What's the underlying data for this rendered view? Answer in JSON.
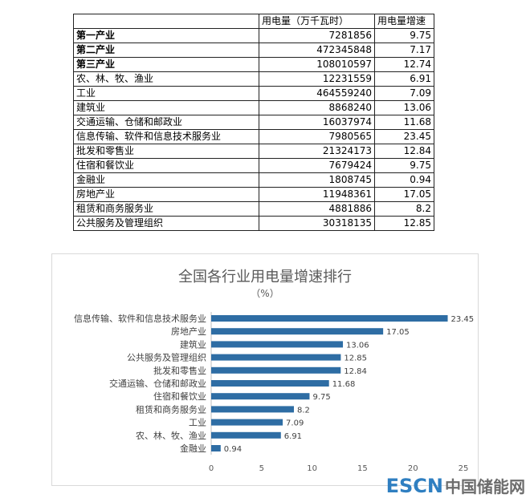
{
  "table": {
    "header": [
      "",
      "用电量（万千瓦时）",
      "用电量增速"
    ],
    "rows": [
      {
        "name": "第一产业",
        "usage": "7281856",
        "growth": "9.75",
        "bold": true
      },
      {
        "name": "第二产业",
        "usage": "472345848",
        "growth": "7.17",
        "bold": true
      },
      {
        "name": "第三产业",
        "usage": "108010597",
        "growth": "12.74",
        "bold": true
      },
      {
        "name": "农、林、牧、渔业",
        "usage": "12231559",
        "growth": "6.91",
        "bold": false
      },
      {
        "name": "工业",
        "usage": "464559240",
        "growth": "7.09",
        "bold": false
      },
      {
        "name": "建筑业",
        "usage": "8868240",
        "growth": "13.06",
        "bold": false
      },
      {
        "name": "交通运输、仓储和邮政业",
        "usage": "16037974",
        "growth": "11.68",
        "bold": false
      },
      {
        "name": "信息传输、软件和信息技术服务业",
        "usage": "7980565",
        "growth": "23.45",
        "bold": false
      },
      {
        "name": "批发和零售业",
        "usage": "21324173",
        "growth": "12.84",
        "bold": false
      },
      {
        "name": "住宿和餐饮业",
        "usage": "7679424",
        "growth": "9.75",
        "bold": false
      },
      {
        "name": "金融业",
        "usage": "1808745",
        "growth": "0.94",
        "bold": false
      },
      {
        "name": "房地产业",
        "usage": "11948361",
        "growth": "17.05",
        "bold": false
      },
      {
        "name": "租赁和商务服务业",
        "usage": "4881886",
        "growth": "8.2",
        "bold": false
      },
      {
        "name": "公共服务及管理组织",
        "usage": "30318135",
        "growth": "12.85",
        "bold": false
      }
    ]
  },
  "chart_data": {
    "type": "bar",
    "orientation": "horizontal",
    "title": "全国各行业用电量增速排行",
    "subtitle": "（%）",
    "categories": [
      "信息传输、软件和信息技术服务业",
      "房地产业",
      "建筑业",
      "公共服务及管理组织",
      "批发和零售业",
      "交通运输、仓储和邮政业",
      "住宿和餐饮业",
      "租赁和商务服务业",
      "工业",
      "农、林、牧、渔业",
      "金融业"
    ],
    "values": [
      23.45,
      17.05,
      13.06,
      12.85,
      12.84,
      11.68,
      9.75,
      8.2,
      7.09,
      6.91,
      0.94
    ],
    "value_labels": [
      "23.45",
      "17.05",
      "13.06",
      "12.85",
      "12.84",
      "11.68",
      "9.75",
      "8.2",
      "7.09",
      "6.91",
      "0.94"
    ],
    "xlim": [
      0,
      25
    ],
    "xticks": [
      "0",
      "5",
      "10",
      "15",
      "20",
      "25"
    ],
    "bar_color": "#2e6da4",
    "grid": false,
    "legend": "none"
  },
  "watermark": {
    "en": "ESCN",
    "cn": "中国储能网",
    "en_color": "#2f7fc1"
  }
}
